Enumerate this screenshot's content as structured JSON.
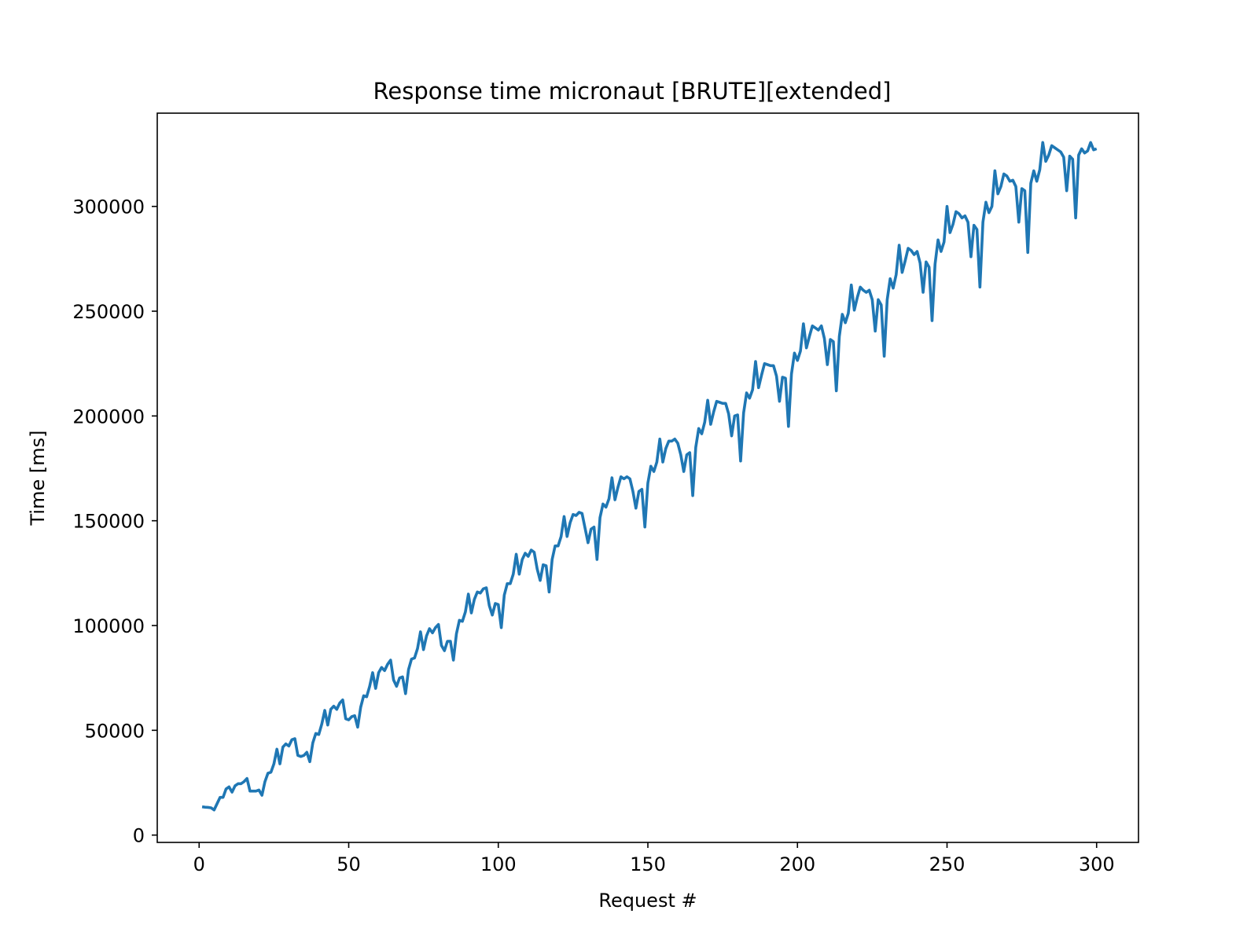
{
  "chart_data": {
    "type": "line",
    "title": "Response time micronaut [BRUTE][extended]",
    "xlabel": "Request #",
    "ylabel": "Time [ms]",
    "xlim": [
      -14,
      314
    ],
    "ylim": [
      -3500,
      344500
    ],
    "xticks": [
      0,
      50,
      100,
      150,
      200,
      250,
      300
    ],
    "yticks": [
      0,
      50000,
      100000,
      150000,
      200000,
      250000,
      300000
    ],
    "grid": false,
    "legend": "none",
    "series": [
      {
        "color": "#1f77b4",
        "x_start": 1,
        "values": [
          13500,
          13300,
          13200,
          13000,
          12000,
          15000,
          18000,
          18000,
          22000,
          23000,
          20500,
          23500,
          24500,
          24500,
          25500,
          27000,
          21000,
          21000,
          21000,
          21500,
          19000,
          25500,
          29500,
          30000,
          34000,
          41000,
          34000,
          42000,
          43500,
          42500,
          45500,
          46000,
          38000,
          37500,
          38000,
          39500,
          35000,
          44000,
          48500,
          48000,
          53000,
          59500,
          52500,
          60000,
          61500,
          60000,
          63000,
          64500,
          55500,
          55000,
          56500,
          57000,
          51500,
          61000,
          66500,
          66000,
          71000,
          77500,
          70000,
          77500,
          80000,
          78500,
          81500,
          83500,
          74000,
          71000,
          75000,
          75500,
          67500,
          79000,
          84000,
          84500,
          89000,
          97000,
          88500,
          95000,
          98500,
          96500,
          99000,
          100500,
          90500,
          88000,
          92500,
          92500,
          83500,
          96000,
          102500,
          102000,
          106500,
          115000,
          106000,
          112500,
          116000,
          115500,
          117500,
          118000,
          109500,
          105000,
          110500,
          110000,
          99000,
          114500,
          120000,
          120000,
          124500,
          134000,
          124500,
          131500,
          134500,
          133000,
          136000,
          135000,
          127000,
          121500,
          129000,
          128500,
          116000,
          131500,
          138000,
          138000,
          142500,
          152000,
          142500,
          149000,
          153000,
          152500,
          154000,
          153500,
          146500,
          139500,
          146000,
          147000,
          131500,
          151500,
          158000,
          156500,
          160500,
          170500,
          160000,
          166000,
          171000,
          170000,
          171000,
          170000,
          164000,
          156000,
          164000,
          165000,
          147000,
          168000,
          176000,
          173500,
          178000,
          189000,
          178000,
          184500,
          188000,
          188000,
          189000,
          187000,
          181500,
          173500,
          181500,
          182500,
          162000,
          185000,
          194000,
          191500,
          197000,
          207500,
          196000,
          202000,
          207000,
          206500,
          206000,
          206000,
          201000,
          190500,
          200000,
          200500,
          178500,
          201500,
          211000,
          208500,
          212500,
          226000,
          213500,
          219500,
          225000,
          224500,
          224000,
          224000,
          219000,
          207000,
          218500,
          218000,
          195000,
          220000,
          230000,
          226500,
          231000,
          244000,
          232500,
          238000,
          243000,
          242000,
          241000,
          243000,
          237000,
          224500,
          236500,
          235500,
          212000,
          238000,
          248500,
          244500,
          249000,
          262500,
          250500,
          256500,
          261500,
          260000,
          259000,
          260000,
          255500,
          240500,
          255500,
          253000,
          228500,
          255500,
          265500,
          261000,
          267500,
          281500,
          268500,
          274000,
          280000,
          279000,
          277000,
          278500,
          273000,
          259000,
          273500,
          271000,
          245500,
          272500,
          284000,
          278500,
          283000,
          300000,
          287500,
          291500,
          297500,
          296500,
          294500,
          295500,
          292500,
          276000,
          291000,
          289000,
          261500,
          292500,
          302000,
          297000,
          300000,
          317000,
          306000,
          309500,
          315500,
          314500,
          312000,
          312500,
          309500,
          292500,
          308500,
          307500,
          278000,
          311000,
          317000,
          312000,
          317500,
          330500,
          321500,
          324500,
          329000,
          328000,
          327000,
          326000,
          323500,
          307500,
          324000,
          322500,
          294500,
          324500,
          327500,
          325500,
          326500,
          330500,
          327000,
          327500
        ]
      }
    ]
  }
}
